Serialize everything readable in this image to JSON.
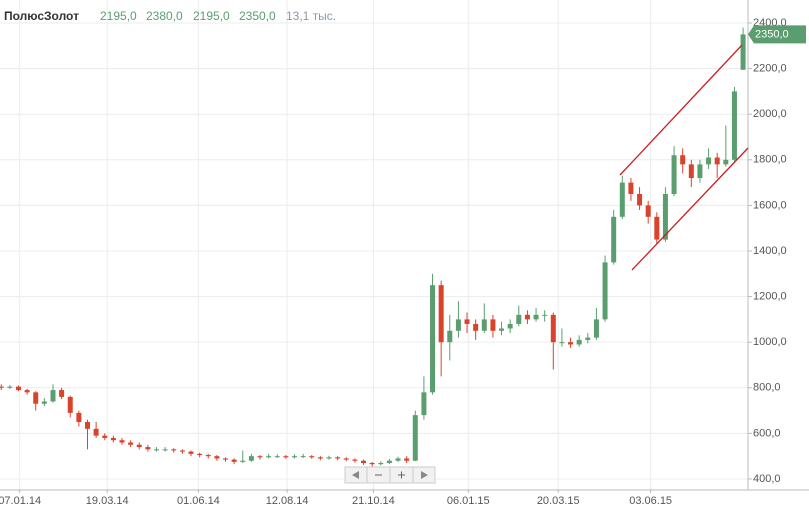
{
  "header": {
    "name": "ПолюсЗолот",
    "open": "2195,0",
    "high": "2380,0",
    "low": "2195,0",
    "close": "2350,0",
    "volume": "13,1 тыс."
  },
  "chart_data": {
    "type": "candlestick",
    "x": [
      "23.12.13",
      "30.12.13",
      "06.01.14",
      "13.01.14",
      "20.01.14",
      "27.01.14",
      "03.02.14",
      "10.02.14",
      "17.02.14",
      "24.02.14",
      "03.03.14",
      "10.03.14",
      "17.03.14",
      "24.03.14",
      "31.03.14",
      "07.04.14",
      "14.04.14",
      "21.04.14",
      "28.04.14",
      "05.05.14",
      "12.05.14",
      "19.05.14",
      "26.05.14",
      "02.06.14",
      "09.06.14",
      "16.06.14",
      "23.06.14",
      "30.06.14",
      "07.07.14",
      "14.07.14",
      "21.07.14",
      "28.07.14",
      "04.08.14",
      "11.08.14",
      "18.08.14",
      "25.08.14",
      "01.09.14",
      "08.09.14",
      "15.09.14",
      "22.09.14",
      "29.09.14",
      "06.10.14",
      "13.10.14",
      "20.10.14",
      "27.10.14",
      "03.11.14",
      "10.11.14",
      "17.11.14",
      "24.11.14",
      "01.12.14",
      "08.12.14",
      "15.12.14",
      "22.12.14",
      "29.12.14",
      "05.01.15",
      "12.01.15",
      "19.01.15",
      "26.01.15",
      "02.02.15",
      "09.02.15",
      "16.02.15",
      "23.02.15",
      "02.03.15",
      "09.03.15",
      "16.03.15",
      "23.03.15",
      "30.03.15",
      "06.04.15",
      "13.04.15",
      "20.04.15",
      "27.04.15",
      "04.05.15",
      "11.05.15",
      "18.05.15",
      "25.05.15",
      "01.06.15",
      "08.06.15",
      "15.06.15",
      "22.06.15",
      "29.06.15",
      "06.07.15",
      "13.07.15",
      "20.07.15",
      "27.07.15",
      "03.08.15",
      "10.08.15",
      "17.08.15"
    ],
    "open": [
      805,
      800,
      805,
      790,
      780,
      730,
      740,
      790,
      760,
      690,
      650,
      620,
      590,
      580,
      570,
      560,
      550,
      540,
      530,
      530,
      530,
      525,
      520,
      510,
      505,
      500,
      490,
      485,
      475,
      480,
      500,
      495,
      500,
      500,
      495,
      500,
      500,
      495,
      490,
      495,
      490,
      485,
      480,
      470,
      465,
      470,
      480,
      490,
      480,
      680,
      780,
      1250,
      1000,
      1050,
      1100,
      1080,
      1050,
      1100,
      1050,
      1060,
      1080,
      1120,
      1100,
      1120,
      1120,
      1000,
      1000,
      990,
      1010,
      1020,
      1100,
      1350,
      1550,
      1700,
      1650,
      1600,
      1550,
      1450,
      1650,
      1820,
      1780,
      1720,
      1780,
      1810,
      1780,
      1800,
      2195
    ],
    "high": [
      815,
      812,
      810,
      795,
      785,
      755,
      815,
      800,
      765,
      700,
      660,
      650,
      600,
      590,
      580,
      570,
      560,
      550,
      540,
      540,
      535,
      530,
      525,
      515,
      510,
      505,
      495,
      490,
      525,
      510,
      505,
      510,
      508,
      505,
      508,
      510,
      505,
      500,
      502,
      500,
      495,
      490,
      485,
      475,
      478,
      488,
      498,
      500,
      700,
      850,
      1300,
      1270,
      1120,
      1180,
      1130,
      1100,
      1170,
      1120,
      1090,
      1100,
      1160,
      1140,
      1150,
      1140,
      1130,
      1060,
      1020,
      1030,
      1040,
      1150,
      1380,
      1580,
      1730,
      1720,
      1680,
      1620,
      1570,
      1680,
      1860,
      1850,
      1800,
      1800,
      1850,
      1830,
      1950,
      2120,
      2380
    ],
    "low": [
      790,
      795,
      785,
      770,
      700,
      720,
      735,
      750,
      670,
      630,
      530,
      580,
      570,
      560,
      550,
      540,
      530,
      520,
      520,
      520,
      515,
      510,
      500,
      495,
      490,
      480,
      475,
      465,
      470,
      475,
      485,
      490,
      492,
      488,
      490,
      492,
      488,
      482,
      485,
      482,
      478,
      472,
      462,
      455,
      460,
      465,
      475,
      470,
      478,
      660,
      770,
      850,
      920,
      1020,
      1040,
      1010,
      1040,
      1020,
      1030,
      1040,
      1070,
      1080,
      1090,
      1090,
      880,
      980,
      975,
      980,
      995,
      1010,
      1090,
      1340,
      1540,
      1620,
      1580,
      1520,
      1430,
      1440,
      1640,
      1740,
      1680,
      1700,
      1760,
      1720,
      1770,
      1790,
      2195
    ],
    "close": [
      800,
      805,
      790,
      780,
      730,
      740,
      790,
      760,
      690,
      650,
      620,
      590,
      580,
      570,
      560,
      550,
      540,
      530,
      530,
      530,
      525,
      520,
      510,
      505,
      500,
      490,
      485,
      475,
      480,
      500,
      495,
      500,
      500,
      495,
      500,
      500,
      495,
      490,
      495,
      490,
      485,
      480,
      470,
      465,
      470,
      480,
      490,
      480,
      680,
      780,
      1250,
      1000,
      1050,
      1100,
      1080,
      1050,
      1100,
      1050,
      1060,
      1080,
      1120,
      1100,
      1120,
      1120,
      1000,
      1000,
      990,
      1010,
      1020,
      1100,
      1350,
      1550,
      1700,
      1650,
      1600,
      1550,
      1450,
      1650,
      1820,
      1780,
      1720,
      1780,
      1810,
      1780,
      1800,
      2100,
      2350
    ],
    "up_color": "#5a9e6f",
    "down_color": "#d9432c",
    "xlim": [
      "22.12.13",
      "21.08.15"
    ],
    "xticks": [
      "07.01.14",
      "19.03.14",
      "01.06.14",
      "12.08.14",
      "21.10.14",
      "06.01.15",
      "20.03.15",
      "03.06.15"
    ],
    "ylim": [
      356,
      2479
    ],
    "yticks": [
      {
        "value": 400,
        "label": "400,0"
      },
      {
        "value": 600,
        "label": "600,0"
      },
      {
        "value": 800,
        "label": "800,0"
      },
      {
        "value": 1000,
        "label": "1000,0"
      },
      {
        "value": 1200,
        "label": "1200,0"
      },
      {
        "value": 1400,
        "label": "1400,0"
      },
      {
        "value": 1600,
        "label": "1600,0"
      },
      {
        "value": 1800,
        "label": "1800,0"
      },
      {
        "value": 2000,
        "label": "2000,0"
      },
      {
        "value": 2200,
        "label": "2200,0"
      },
      {
        "value": 2400,
        "label": "2400,0"
      }
    ],
    "grid": true,
    "last_price": {
      "value": 2350,
      "label": "2350,0"
    }
  }
}
